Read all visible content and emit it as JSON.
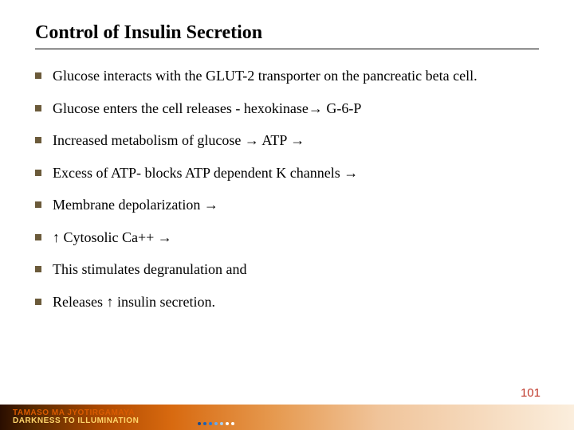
{
  "title": "Control of Insulin Secretion",
  "bullets": [
    "Glucose interacts with the GLUT-2 transporter on the pancreatic beta cell.",
    "Glucose enters the cell releases - hexokinase→ G-6-P",
    "Increased metabolism of glucose → ATP →",
    "Excess of ATP- blocks ATP dependent K channels →",
    "Membrane depolarization →",
    "↑ Cytosolic Ca++ →",
    "This stimulates degranulation and",
    "Releases ↑ insulin secretion."
  ],
  "footer": {
    "line1": "TAMASO MA JYOTIRGAMAYA",
    "line2": "DARKNESS TO ILLUMINATION"
  },
  "page_number": "101",
  "colors": {
    "bullet_marker": "#6b5a3a",
    "page_number": "#c0392b",
    "dot_colors": [
      "#1a4a8c",
      "#2060b0",
      "#2a78d8",
      "#6aa8e8",
      "#a8d0f0",
      "#fff",
      "#fff"
    ]
  }
}
